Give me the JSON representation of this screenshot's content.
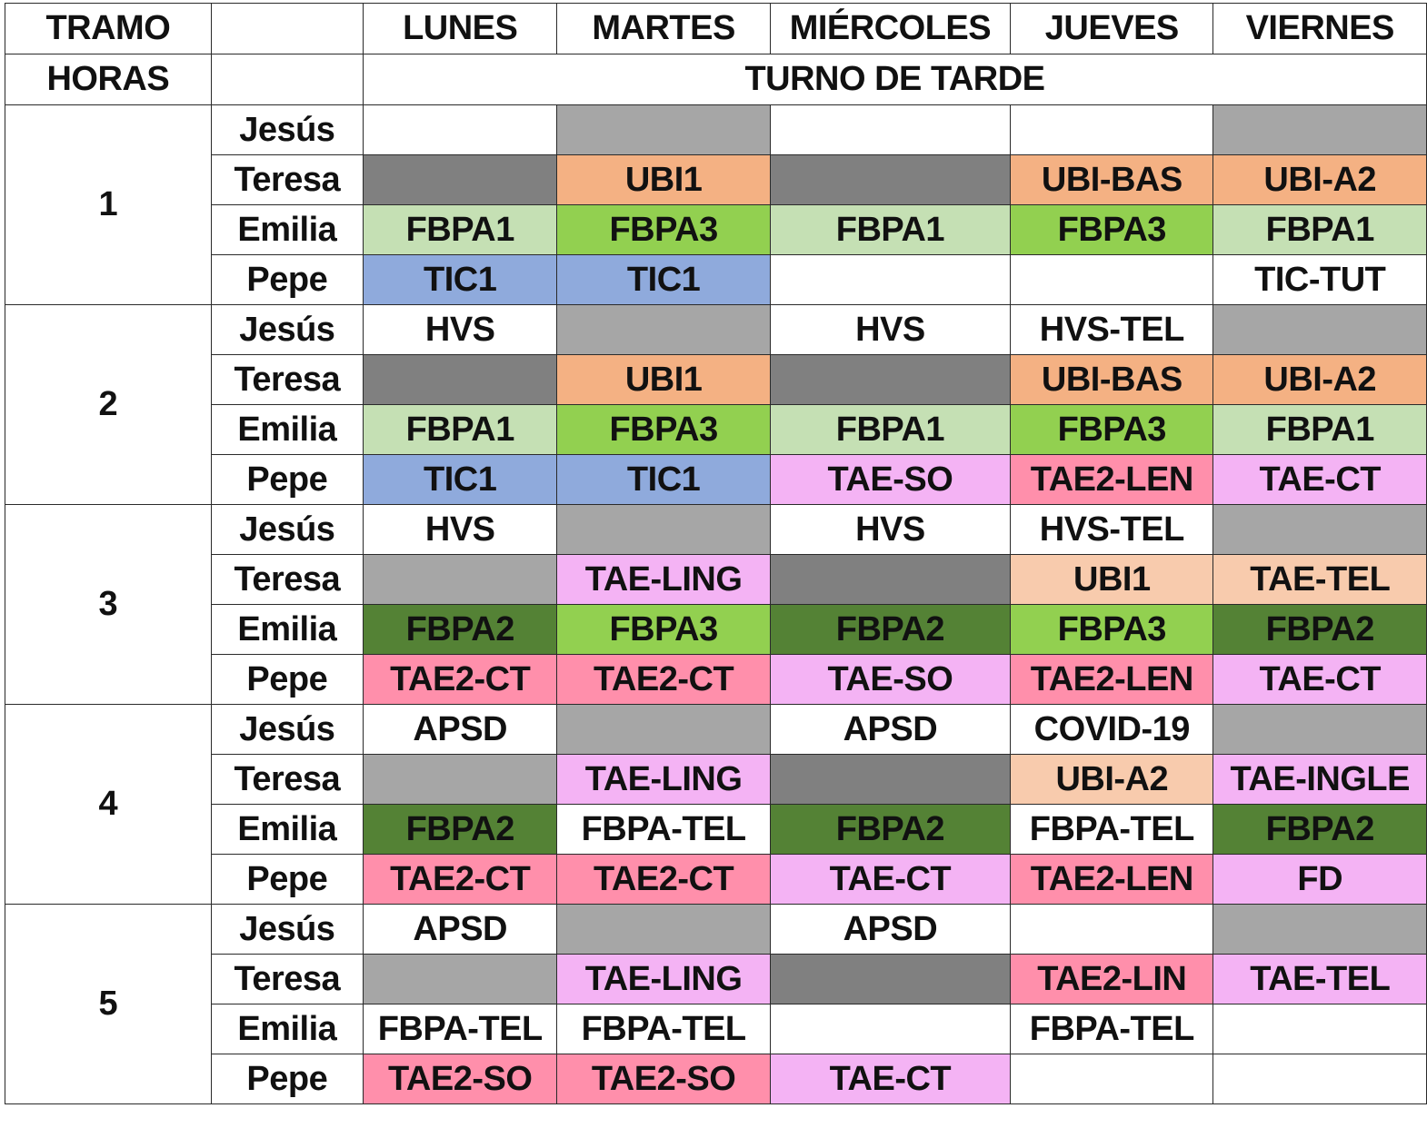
{
  "header": {
    "tramo_label": "TRAMO",
    "horas_label": "HORAS",
    "turno_label": "TURNO DE TARDE",
    "days": [
      "LUNES",
      "MARTES",
      "MIÉRCOLES",
      "JUEVES",
      "VIERNES"
    ]
  },
  "colors": {
    "white": "#ffffff",
    "gray_light": "#a6a6a6",
    "gray_dark": "#808080",
    "orange": "#f4b183",
    "orange_light": "#f8cbad",
    "green_light": "#c5e0b4",
    "green_mid": "#92d050",
    "green_dark": "#548235",
    "blue": "#8faadc",
    "pink": "#ff8fab",
    "lilac": "#f4b3f4"
  },
  "tramos": [
    {
      "label": "1",
      "rows": [
        {
          "name": "Jesús",
          "cells": [
            {
              "text": "",
              "color": "white"
            },
            {
              "text": "",
              "color": "gray_light"
            },
            {
              "text": "",
              "color": "white"
            },
            {
              "text": "",
              "color": "white"
            },
            {
              "text": "",
              "color": "gray_light"
            }
          ]
        },
        {
          "name": "Teresa",
          "cells": [
            {
              "text": "",
              "color": "gray_dark"
            },
            {
              "text": "UBI1",
              "color": "orange"
            },
            {
              "text": "",
              "color": "gray_dark"
            },
            {
              "text": "UBI-BAS",
              "color": "orange"
            },
            {
              "text": "UBI-A2",
              "color": "orange"
            }
          ]
        },
        {
          "name": "Emilia",
          "cells": [
            {
              "text": "FBPA1",
              "color": "green_light"
            },
            {
              "text": "FBPA3",
              "color": "green_mid"
            },
            {
              "text": "FBPA1",
              "color": "green_light"
            },
            {
              "text": "FBPA3",
              "color": "green_mid"
            },
            {
              "text": "FBPA1",
              "color": "green_light"
            }
          ]
        },
        {
          "name": "Pepe",
          "cells": [
            {
              "text": "TIC1",
              "color": "blue"
            },
            {
              "text": "TIC1",
              "color": "blue"
            },
            {
              "text": "",
              "color": "white"
            },
            {
              "text": "",
              "color": "white"
            },
            {
              "text": "TIC-TUT",
              "color": "white"
            }
          ]
        }
      ]
    },
    {
      "label": "2",
      "rows": [
        {
          "name": "Jesús",
          "cells": [
            {
              "text": "HVS",
              "color": "white"
            },
            {
              "text": "",
              "color": "gray_light"
            },
            {
              "text": "HVS",
              "color": "white"
            },
            {
              "text": "HVS-TEL",
              "color": "white"
            },
            {
              "text": "",
              "color": "gray_light"
            }
          ]
        },
        {
          "name": "Teresa",
          "cells": [
            {
              "text": "",
              "color": "gray_dark"
            },
            {
              "text": "UBI1",
              "color": "orange"
            },
            {
              "text": "",
              "color": "gray_dark"
            },
            {
              "text": "UBI-BAS",
              "color": "orange"
            },
            {
              "text": "UBI-A2",
              "color": "orange"
            }
          ]
        },
        {
          "name": "Emilia",
          "cells": [
            {
              "text": "FBPA1",
              "color": "green_light"
            },
            {
              "text": "FBPA3",
              "color": "green_mid"
            },
            {
              "text": "FBPA1",
              "color": "green_light"
            },
            {
              "text": "FBPA3",
              "color": "green_mid"
            },
            {
              "text": "FBPA1",
              "color": "green_light"
            }
          ]
        },
        {
          "name": "Pepe",
          "cells": [
            {
              "text": "TIC1",
              "color": "blue"
            },
            {
              "text": "TIC1",
              "color": "blue"
            },
            {
              "text": "TAE-SO",
              "color": "lilac"
            },
            {
              "text": "TAE2-LEN",
              "color": "pink"
            },
            {
              "text": "TAE-CT",
              "color": "lilac"
            }
          ]
        }
      ]
    },
    {
      "label": "3",
      "rows": [
        {
          "name": "Jesús",
          "cells": [
            {
              "text": "HVS",
              "color": "white"
            },
            {
              "text": "",
              "color": "gray_light"
            },
            {
              "text": "HVS",
              "color": "white"
            },
            {
              "text": "HVS-TEL",
              "color": "white"
            },
            {
              "text": "",
              "color": "gray_light"
            }
          ]
        },
        {
          "name": "Teresa",
          "cells": [
            {
              "text": "",
              "color": "gray_light"
            },
            {
              "text": "TAE-LING",
              "color": "lilac"
            },
            {
              "text": "",
              "color": "gray_dark"
            },
            {
              "text": "UBI1",
              "color": "orange_light"
            },
            {
              "text": "TAE-TEL",
              "color": "orange_light"
            }
          ]
        },
        {
          "name": "Emilia",
          "cells": [
            {
              "text": "FBPA2",
              "color": "green_dark"
            },
            {
              "text": "FBPA3",
              "color": "green_mid"
            },
            {
              "text": "FBPA2",
              "color": "green_dark"
            },
            {
              "text": "FBPA3",
              "color": "green_mid"
            },
            {
              "text": "FBPA2",
              "color": "green_dark"
            }
          ]
        },
        {
          "name": "Pepe",
          "cells": [
            {
              "text": "TAE2-CT",
              "color": "pink"
            },
            {
              "text": "TAE2-CT",
              "color": "pink"
            },
            {
              "text": "TAE-SO",
              "color": "lilac"
            },
            {
              "text": "TAE2-LEN",
              "color": "pink"
            },
            {
              "text": "TAE-CT",
              "color": "lilac"
            }
          ]
        }
      ]
    },
    {
      "label": "4",
      "rows": [
        {
          "name": "Jesús",
          "cells": [
            {
              "text": "APSD",
              "color": "white"
            },
            {
              "text": "",
              "color": "gray_light"
            },
            {
              "text": "APSD",
              "color": "white"
            },
            {
              "text": "COVID-19",
              "color": "white"
            },
            {
              "text": "",
              "color": "gray_light"
            }
          ]
        },
        {
          "name": "Teresa",
          "cells": [
            {
              "text": "",
              "color": "gray_light"
            },
            {
              "text": "TAE-LING",
              "color": "lilac"
            },
            {
              "text": "",
              "color": "gray_dark"
            },
            {
              "text": "UBI-A2",
              "color": "orange_light"
            },
            {
              "text": "TAE-INGLE",
              "color": "lilac"
            }
          ]
        },
        {
          "name": "Emilia",
          "cells": [
            {
              "text": "FBPA2",
              "color": "green_dark"
            },
            {
              "text": "FBPA-TEL",
              "color": "white"
            },
            {
              "text": "FBPA2",
              "color": "green_dark"
            },
            {
              "text": "FBPA-TEL",
              "color": "white"
            },
            {
              "text": "FBPA2",
              "color": "green_dark"
            }
          ]
        },
        {
          "name": "Pepe",
          "cells": [
            {
              "text": "TAE2-CT",
              "color": "pink"
            },
            {
              "text": "TAE2-CT",
              "color": "pink"
            },
            {
              "text": "TAE-CT",
              "color": "lilac"
            },
            {
              "text": "TAE2-LEN",
              "color": "pink"
            },
            {
              "text": "FD",
              "color": "lilac"
            }
          ]
        }
      ]
    },
    {
      "label": "5",
      "rows": [
        {
          "name": "Jesús",
          "cells": [
            {
              "text": "APSD",
              "color": "white"
            },
            {
              "text": "",
              "color": "gray_light"
            },
            {
              "text": "APSD",
              "color": "white"
            },
            {
              "text": "",
              "color": "white"
            },
            {
              "text": "",
              "color": "gray_light"
            }
          ]
        },
        {
          "name": "Teresa",
          "cells": [
            {
              "text": "",
              "color": "gray_light"
            },
            {
              "text": "TAE-LING",
              "color": "lilac"
            },
            {
              "text": "",
              "color": "gray_dark"
            },
            {
              "text": "TAE2-LIN",
              "color": "pink"
            },
            {
              "text": "TAE-TEL",
              "color": "lilac"
            }
          ]
        },
        {
          "name": "Emilia",
          "cells": [
            {
              "text": "FBPA-TEL",
              "color": "white"
            },
            {
              "text": "FBPA-TEL",
              "color": "white"
            },
            {
              "text": "",
              "color": "white"
            },
            {
              "text": "FBPA-TEL",
              "color": "white"
            },
            {
              "text": "",
              "color": "white"
            }
          ]
        },
        {
          "name": "Pepe",
          "cells": [
            {
              "text": "TAE2-SO",
              "color": "pink"
            },
            {
              "text": "TAE2-SO",
              "color": "pink"
            },
            {
              "text": "TAE-CT",
              "color": "lilac"
            },
            {
              "text": "",
              "color": "white"
            },
            {
              "text": "",
              "color": "white"
            }
          ]
        }
      ]
    }
  ]
}
